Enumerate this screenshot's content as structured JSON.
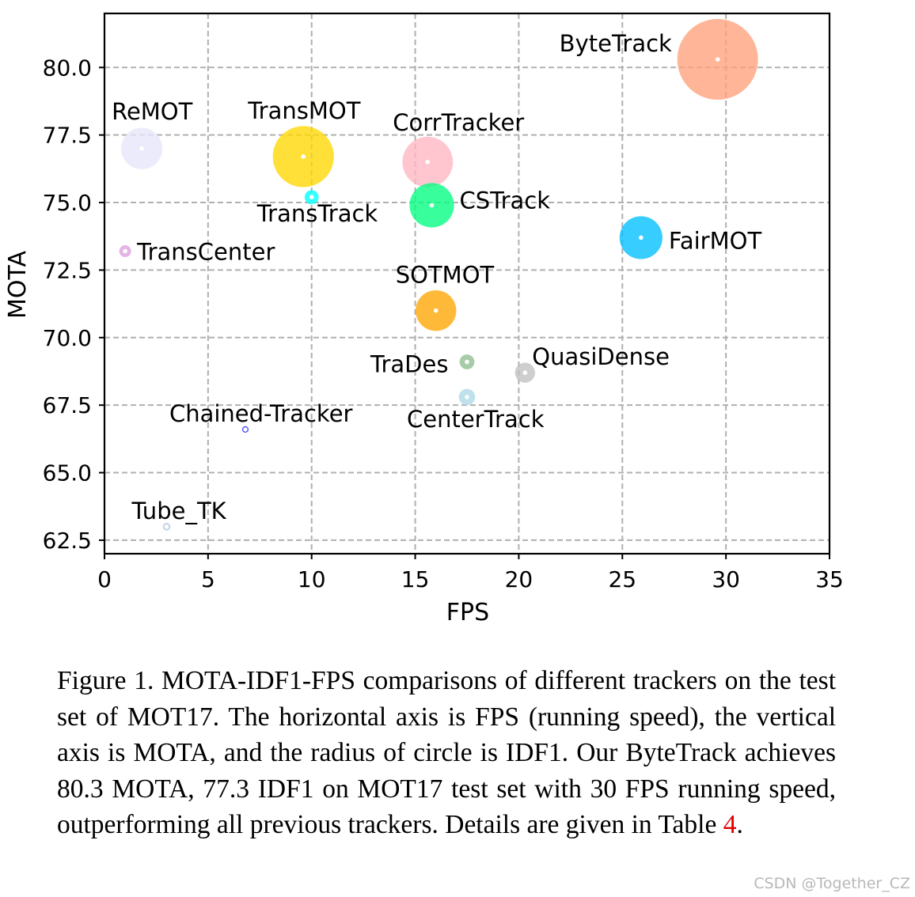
{
  "chart_data": {
    "type": "scatter",
    "xlabel": "FPS",
    "ylabel": "MOTA",
    "xlim": [
      0,
      35
    ],
    "ylim": [
      62.0,
      82.0
    ],
    "xticks": [
      "0",
      "5",
      "10",
      "15",
      "20",
      "25",
      "30",
      "35"
    ],
    "yticks": [
      "62.5",
      "65.0",
      "67.5",
      "70.0",
      "72.5",
      "75.0",
      "77.5",
      "80.0"
    ],
    "grid": true,
    "size_encoding": "IDF1",
    "points": [
      {
        "label": "ByteTrack",
        "fps": 29.6,
        "mota": 80.3,
        "idf1": 77.3,
        "color": "#ffa07a"
      },
      {
        "label": "ReMOT",
        "fps": 1.8,
        "mota": 77.0,
        "idf1": 72.0,
        "color": "#e6e6fa"
      },
      {
        "label": "TransMOT",
        "fps": 9.6,
        "mota": 76.7,
        "idf1": 75.1,
        "color": "#ffd700"
      },
      {
        "label": "CorrTracker",
        "fps": 15.6,
        "mota": 76.5,
        "idf1": 73.6,
        "color": "#ffb6c1"
      },
      {
        "label": "TransTrack",
        "fps": 10.0,
        "mota": 75.2,
        "idf1": 63.5,
        "color": "#00ffff"
      },
      {
        "label": "CSTrack",
        "fps": 15.8,
        "mota": 74.9,
        "idf1": 72.6,
        "color": "#00ff7f"
      },
      {
        "label": "TransCenter",
        "fps": 1.0,
        "mota": 73.2,
        "idf1": 62.2,
        "color": "#dda0dd"
      },
      {
        "label": "FairMOT",
        "fps": 25.9,
        "mota": 73.7,
        "idf1": 72.3,
        "color": "#00bfff"
      },
      {
        "label": "SOTMOT",
        "fps": 16.0,
        "mota": 71.0,
        "idf1": 71.9,
        "color": "#ffa500"
      },
      {
        "label": "TraDes",
        "fps": 17.5,
        "mota": 69.1,
        "idf1": 63.9,
        "color": "#8fbc8f"
      },
      {
        "label": "QuasiDense",
        "fps": 20.3,
        "mota": 68.7,
        "idf1": 66.3,
        "color": "#c0c0c0"
      },
      {
        "label": "CenterTrack",
        "fps": 17.5,
        "mota": 67.8,
        "idf1": 64.7,
        "color": "#add8e6"
      },
      {
        "label": "Chained-Tracker",
        "fps": 6.8,
        "mota": 66.6,
        "idf1": 57.2,
        "color": "#0000ff"
      },
      {
        "label": "Tube_TK",
        "fps": 3.0,
        "mota": 63.0,
        "idf1": 58.6,
        "color": "#b0c4de"
      }
    ]
  },
  "caption": {
    "text_before": "Figure 1.  MOTA-IDF1-FPS comparisons of different trackers on the test set of MOT17. The horizontal axis is FPS (running speed), the vertical axis is MOTA, and the radius of circle is IDF1.  Our ByteTrack achieves 80.3 MOTA, 77.3 IDF1 on MOT17 test set with 30 FPS running speed, outperforming all previous trackers. Details are given in Table ",
    "table_ref": "4",
    "text_after": "."
  },
  "watermark": "CSDN @Together_CZ"
}
